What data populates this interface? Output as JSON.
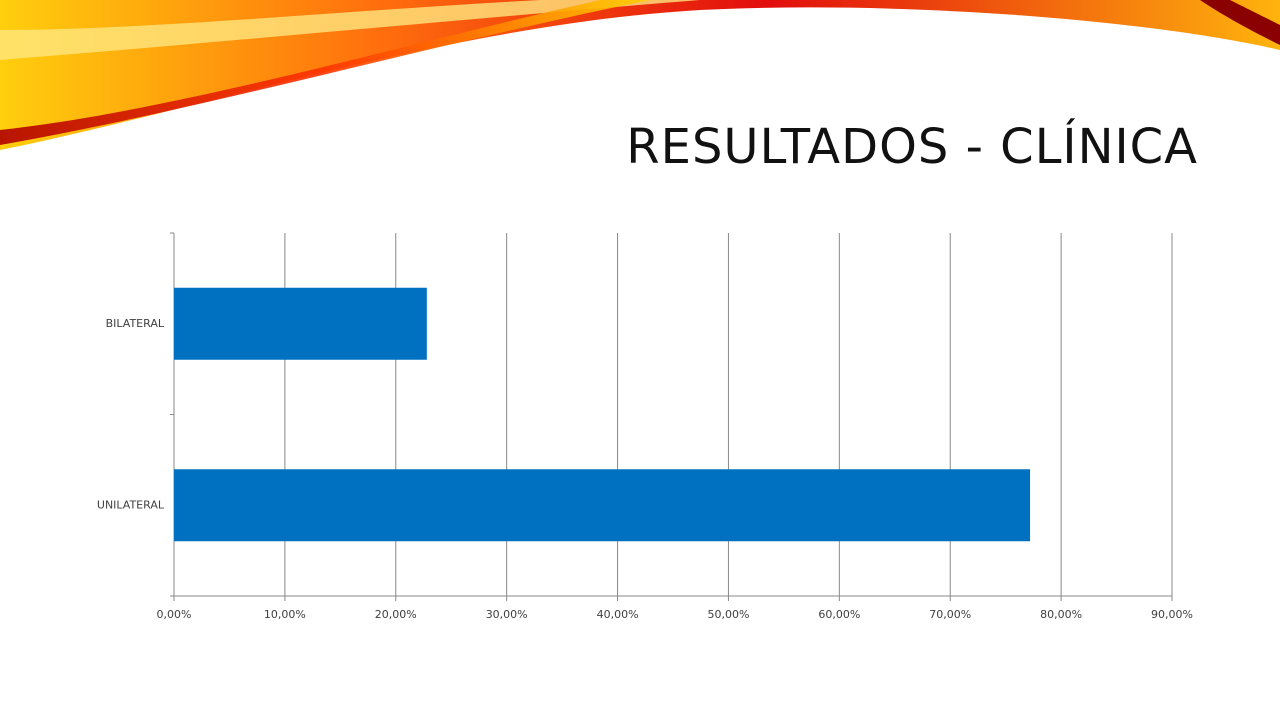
{
  "chart_data": {
    "type": "hbar",
    "title": "RESULTADOS - CLÍNICA",
    "categories": [
      "UNILATERAL",
      "BILATERAL"
    ],
    "values": [
      77.2,
      22.8
    ],
    "color": "#0070c0",
    "xlim": [
      0,
      90
    ],
    "xticks": [
      {
        "value": 0,
        "label": "0,00%"
      },
      {
        "value": 10,
        "label": "10,00%"
      },
      {
        "value": 20,
        "label": "20,00%"
      },
      {
        "value": 30,
        "label": "30,00%"
      },
      {
        "value": 40,
        "label": "40,00%"
      },
      {
        "value": 50,
        "label": "50,00%"
      },
      {
        "value": 60,
        "label": "60,00%"
      },
      {
        "value": 70,
        "label": "70,00%"
      },
      {
        "value": 80,
        "label": "80,00%"
      },
      {
        "value": 90,
        "label": "90,00%"
      }
    ],
    "grid": true
  }
}
